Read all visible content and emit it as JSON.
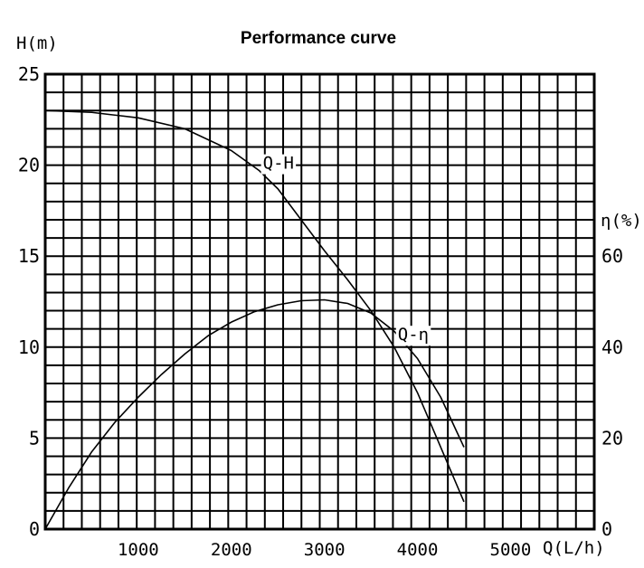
{
  "chart_data": {
    "type": "line",
    "title": "Performance curve",
    "xlabel": "Q(L/h)",
    "ylabel_left": "H(m)",
    "ylabel_right": "η(%)",
    "x_ticks": [
      1000,
      2000,
      3000,
      4000,
      5000
    ],
    "x_zero_label": "",
    "xlim": [
      0,
      5900
    ],
    "y_left_ticks": [
      0,
      5,
      10,
      15,
      20,
      25
    ],
    "ylim_left": [
      0,
      25
    ],
    "y_right_ticks": [
      0,
      20,
      40,
      60
    ],
    "ylim_right": [
      0,
      100
    ],
    "grid": true,
    "series": [
      {
        "name": "Q-H",
        "axis": "left",
        "x": [
          0,
          500,
          1000,
          1500,
          2000,
          2300,
          2500,
          2750,
          3000,
          3250,
          3500,
          3750,
          4000,
          4250,
          4500
        ],
        "y": [
          23.0,
          22.9,
          22.6,
          22.0,
          20.8,
          19.7,
          18.7,
          17.0,
          15.3,
          13.7,
          12.0,
          10.0,
          7.5,
          4.5,
          1.5
        ]
      },
      {
        "name": "Q-η",
        "axis": "right",
        "x": [
          0,
          250,
          500,
          750,
          1000,
          1250,
          1500,
          1750,
          2000,
          2250,
          2500,
          2750,
          3000,
          3250,
          3500,
          3750,
          4000,
          4250,
          4500
        ],
        "y": [
          0,
          9,
          17,
          23.5,
          29,
          34,
          38.5,
          42.5,
          45.5,
          47.8,
          49.3,
          50.2,
          50.4,
          49.6,
          47.5,
          43.5,
          37.5,
          29,
          18
        ]
      }
    ],
    "annotations": [
      {
        "text": "Q-H",
        "series": "Q-H"
      },
      {
        "text": "Q-η",
        "series": "Q-η"
      }
    ]
  }
}
